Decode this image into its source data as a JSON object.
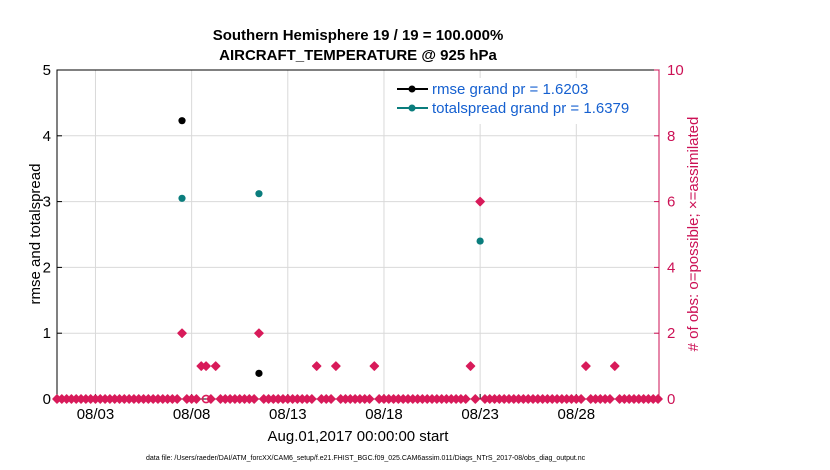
{
  "chart_data": {
    "type": "scatter",
    "title": "Southern Hemisphere 19 / 19 = 100.000%",
    "subtitle": "AIRCRAFT_TEMPERATURE @ 925 hPa",
    "xlabel": "Aug.01,2017 00:00:00 start",
    "ylabel_left": "rmse and totalspread",
    "ylabel_right": "# of obs: o=possible; ×=assimilated",
    "footer": "data file: /Users/raeder/DAI/ATM_forcXX/CAM6_setup/f.e21.FHIST_BGC.f09_025.CAM6assim.011/Diags_NTrS_2017-08/obs_diag_output.nc",
    "xlim": [
      1,
      32.3
    ],
    "x_ticks": [
      3,
      8,
      13,
      18,
      23,
      28
    ],
    "x_tick_labels": [
      "08/03",
      "08/08",
      "08/13",
      "08/18",
      "08/23",
      "08/28"
    ],
    "ylim_left": [
      0,
      5
    ],
    "y_ticks_left": [
      "0",
      "1",
      "2",
      "3",
      "4",
      "5"
    ],
    "ylim_right": [
      0,
      10
    ],
    "y_ticks_right": [
      "0",
      "2",
      "4",
      "6",
      "8",
      "10"
    ],
    "grid": true,
    "legend_position": "top-right",
    "colors": {
      "rmse": "#000000",
      "spread": "#0a7d7d",
      "obs": "#d81b5a",
      "legend_text": "#1560d0",
      "right_axis": "#cc1155",
      "grid": "#d9d9d9"
    },
    "series": [
      {
        "name": "rmse grand pr = 1.6203",
        "axis": "left",
        "x": [
          7.5,
          11.5
        ],
        "values": [
          4.23,
          0.39
        ]
      },
      {
        "name": "totalspread grand pr = 1.6379",
        "axis": "left",
        "x": [
          7.5,
          11.5,
          23.0
        ],
        "values": [
          3.05,
          3.12,
          2.4
        ]
      },
      {
        "name": "obs assimilated",
        "axis": "right",
        "x": [
          1.0,
          1.25,
          1.5,
          1.75,
          2.0,
          2.25,
          2.5,
          2.75,
          3.0,
          3.25,
          3.5,
          3.75,
          4.0,
          4.25,
          4.5,
          4.75,
          5.0,
          5.25,
          5.5,
          5.75,
          6.0,
          6.25,
          6.5,
          6.75,
          7.0,
          7.25,
          7.5,
          7.75,
          8.0,
          8.25,
          8.5,
          8.75,
          9.0,
          9.25,
          9.5,
          9.75,
          10.0,
          10.25,
          10.5,
          10.75,
          11.0,
          11.25,
          11.5,
          11.75,
          12.0,
          12.25,
          12.5,
          12.75,
          13.0,
          13.25,
          13.5,
          13.75,
          14.0,
          14.25,
          14.5,
          14.75,
          15.0,
          15.25,
          15.5,
          15.75,
          16.0,
          16.25,
          16.5,
          16.75,
          17.0,
          17.25,
          17.5,
          17.75,
          18.0,
          18.25,
          18.5,
          18.75,
          19.0,
          19.25,
          19.5,
          19.75,
          20.0,
          20.25,
          20.5,
          20.75,
          21.0,
          21.25,
          21.5,
          21.75,
          22.0,
          22.25,
          22.5,
          22.75,
          23.0,
          23.25,
          23.5,
          23.75,
          24.0,
          24.25,
          24.5,
          24.75,
          25.0,
          25.25,
          25.5,
          25.75,
          26.0,
          26.25,
          26.5,
          26.75,
          27.0,
          27.25,
          27.5,
          27.75,
          28.0,
          28.25,
          28.5,
          28.75,
          29.0,
          29.25,
          29.5,
          29.75,
          30.0,
          30.25,
          30.5,
          30.75,
          31.0,
          31.25,
          31.5,
          31.75,
          32.0,
          32.25
        ],
        "values": [
          0,
          0,
          0,
          0,
          0,
          0,
          0,
          0,
          0,
          0,
          0,
          0,
          0,
          0,
          0,
          0,
          0,
          0,
          0,
          0,
          0,
          0,
          0,
          0,
          0,
          0,
          2,
          0,
          0,
          0,
          1,
          1,
          0,
          1,
          0,
          0,
          0,
          0,
          0,
          0,
          0,
          0,
          2,
          0,
          0,
          0,
          0,
          0,
          0,
          0,
          0,
          0,
          0,
          0,
          1,
          0,
          0,
          0,
          1,
          0,
          0,
          0,
          0,
          0,
          0,
          0,
          1,
          0,
          0,
          0,
          0,
          0,
          0,
          0,
          0,
          0,
          0,
          0,
          0,
          0,
          0,
          0,
          0,
          0,
          0,
          0,
          1,
          0,
          6,
          0,
          0,
          0,
          0,
          0,
          0,
          0,
          0,
          0,
          0,
          0,
          0,
          0,
          0,
          0,
          0,
          0,
          0,
          0,
          0,
          0,
          1,
          0,
          0,
          0,
          0,
          0,
          1,
          0,
          0,
          0,
          0,
          0,
          0,
          0,
          0,
          0
        ]
      },
      {
        "name": "obs possible",
        "axis": "right",
        "x": [
          8.75
        ],
        "values": [
          0
        ]
      }
    ]
  }
}
